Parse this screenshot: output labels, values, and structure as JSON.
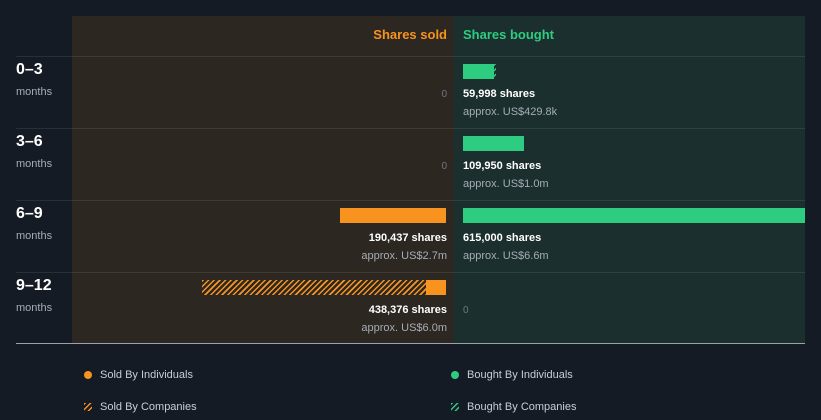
{
  "colors": {
    "sold": "#f7931e",
    "bought": "#2ecc80"
  },
  "headers": {
    "sold": "Shares sold",
    "bought": "Shares bought"
  },
  "rows": [
    {
      "period": "0–3",
      "unit": "months",
      "sold": {
        "zero": "0"
      },
      "bought": {
        "shares": "59,998 shares",
        "approx": "approx. US$429.8k"
      }
    },
    {
      "period": "3–6",
      "unit": "months",
      "sold": {
        "zero": "0"
      },
      "bought": {
        "shares": "109,950 shares",
        "approx": "approx. US$1.0m"
      }
    },
    {
      "period": "6–9",
      "unit": "months",
      "sold": {
        "shares": "190,437 shares",
        "approx": "approx. US$2.7m"
      },
      "bought": {
        "shares": "615,000 shares",
        "approx": "approx. US$6.6m"
      }
    },
    {
      "period": "9–12",
      "unit": "months",
      "sold": {
        "shares": "438,376 shares",
        "approx": "approx. US$6.0m"
      },
      "bought": {
        "zero": "0"
      }
    }
  ],
  "legend": {
    "sold_individuals": "Sold By Individuals",
    "bought_individuals": "Bought By Individuals",
    "sold_companies": "Sold By Companies",
    "bought_companies": "Bought By Companies"
  },
  "chart_data": {
    "type": "bar",
    "categories": [
      "0–3 months",
      "3–6 months",
      "6–9 months",
      "9–12 months"
    ],
    "series": [
      {
        "name": "Sold By Individuals",
        "values": [
          0,
          0,
          190437,
          36000
        ]
      },
      {
        "name": "Sold By Companies",
        "values": [
          0,
          0,
          0,
          402376
        ]
      },
      {
        "name": "Bought By Individuals",
        "values": [
          56500,
          109950,
          615000,
          0
        ]
      },
      {
        "name": "Bought By Companies",
        "values": [
          3498,
          0,
          0,
          0
        ]
      }
    ],
    "totals": {
      "sold": [
        0,
        0,
        190437,
        438376
      ],
      "bought": [
        59998,
        109950,
        615000,
        0
      ]
    },
    "max_shares": 615000,
    "legend_position": "bottom"
  }
}
